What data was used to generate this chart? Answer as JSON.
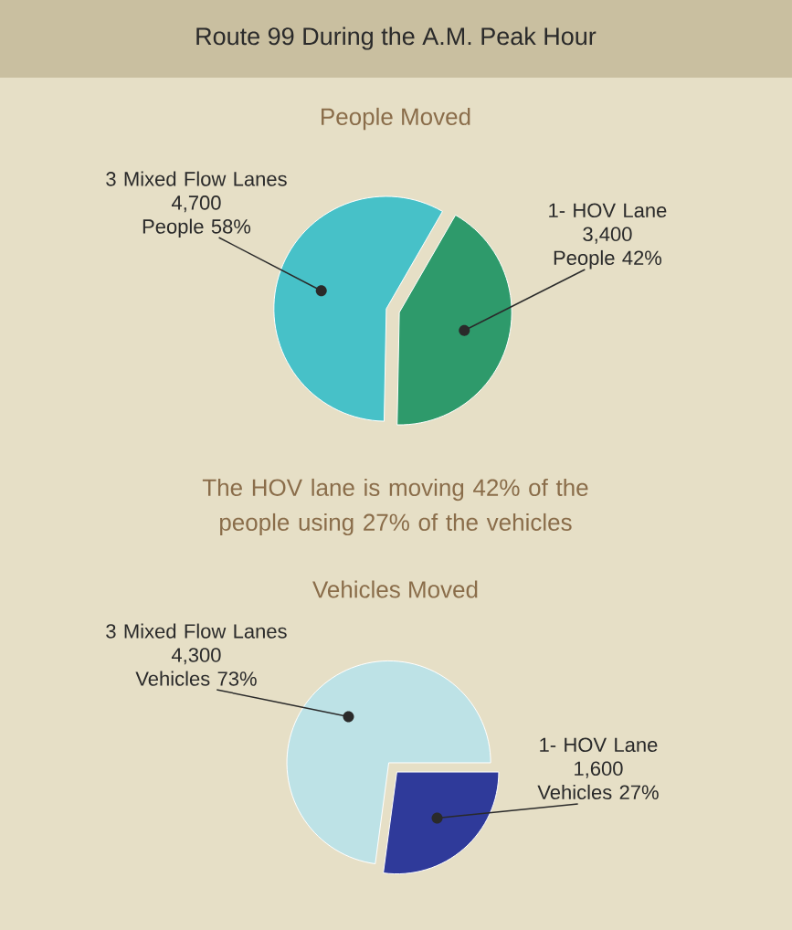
{
  "chart_data": [
    {
      "type": "pie",
      "title": "Route 99 During the A.M. Peak Hour",
      "subtitle": "People Moved",
      "categories": [
        "3 Mixed Flow Lanes",
        "1- HOV Lane"
      ],
      "values": [
        4700,
        3400
      ],
      "colors": [
        "#47c1c8",
        "#2e9a6b"
      ],
      "value_labels": [
        "4,700 People 58%",
        "3,400 People 42%"
      ],
      "annotations": [
        "The HOV lane is moving 42% of the people using 27% of the vehicles"
      ]
    },
    {
      "type": "pie",
      "title": "Vehicles Moved",
      "categories": [
        "3 Mixed Flow Lanes",
        "1- HOV Lane"
      ],
      "values": [
        4300,
        1600
      ],
      "colors": [
        "#bde2e6",
        "#2f3a9a"
      ],
      "value_labels": [
        "4,300 Vehicles 73%",
        "1,600 Vehicles 27%"
      ]
    }
  ]
}
